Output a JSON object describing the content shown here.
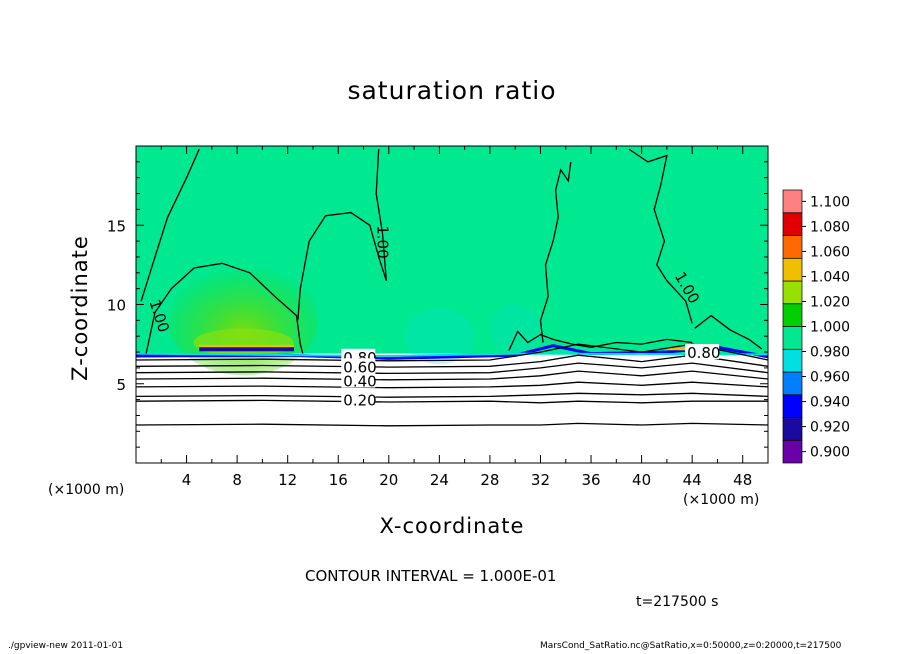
{
  "chart_data": {
    "type": "heatmap",
    "title": "saturation ratio",
    "xlabel": "X-coordinate",
    "ylabel": "Z-coordinate",
    "x_unit": "(×1000 m)",
    "xlim": [
      0,
      50
    ],
    "ylim": [
      0,
      20
    ],
    "x_ticks": [
      "4",
      "8",
      "12",
      "16",
      "20",
      "24",
      "28",
      "32",
      "36",
      "40",
      "44",
      "48"
    ],
    "y_ticks": [
      "5",
      "10",
      "15"
    ],
    "colorbar": {
      "levels": [
        "0.900",
        "0.920",
        "0.940",
        "0.960",
        "0.980",
        "1.000",
        "1.020",
        "1.040",
        "1.060",
        "1.080",
        "1.100"
      ],
      "colors": [
        "#6a00a8",
        "#1a0aa0",
        "#0000ff",
        "#0080ff",
        "#00e0e0",
        "#00e890",
        "#00d000",
        "#98e000",
        "#f0c000",
        "#ff6a00",
        "#e00000",
        "#ff8080"
      ]
    },
    "contour_labels": [
      "1.00",
      "1.00",
      "1.00",
      "0.80",
      "0.80",
      "0.60",
      "0.40",
      "0.20"
    ],
    "contour_interval": "CONTOUR INTERVAL = 1.000E-01",
    "time": "t=217500 s",
    "footer_left": "./gpview-new  2011-01-01",
    "footer_right": "MarsCond_SatRatio.nc@SatRatio,x=0:50000,z=0:20000,t=217500"
  }
}
